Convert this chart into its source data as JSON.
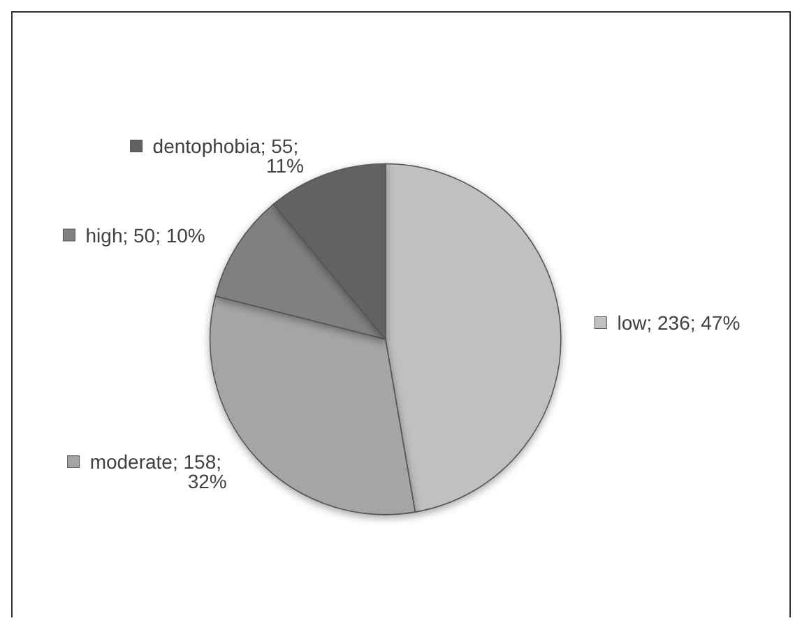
{
  "chart_data": {
    "type": "pie",
    "categories": [
      "low",
      "moderate",
      "high",
      "dentophobia"
    ],
    "values": [
      236,
      158,
      50,
      55
    ],
    "value_labels": [
      "236; 47%",
      "158; 32%",
      "50; 10%",
      "55; 11%"
    ],
    "colors": [
      "#c0c0c2",
      "#a5a5a8",
      "#808083",
      "#626264"
    ],
    "legend": "left"
  }
}
